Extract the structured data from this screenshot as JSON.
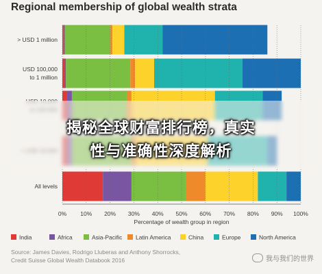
{
  "chart_data": {
    "type": "bar",
    "orientation": "horizontal",
    "stacked": true,
    "title": "Regional membership of global wealth strata",
    "xlabel": "Percentage of wealth group in region",
    "xlim": [
      0,
      100
    ],
    "x_ticks": [
      "0%",
      "10%",
      "20%",
      "30%",
      "40%",
      "50%",
      "60%",
      "70%",
      "80%",
      "90%",
      "100%"
    ],
    "grid": true,
    "legend_position": "bottom",
    "categories": [
      [
        "> USD 1 million"
      ],
      [
        "USD 100,000",
        "to 1 million"
      ],
      [
        "USD 10,000",
        "to 100,000"
      ],
      [
        "< USD 10,000"
      ],
      [
        "All levels"
      ]
    ],
    "series": [
      {
        "name": "India",
        "color": "#e03a36",
        "values": [
          0.5,
          1,
          2,
          2,
          17
        ]
      },
      {
        "name": "Africa",
        "color": "#7a56a2",
        "values": [
          0.5,
          0.5,
          2,
          2,
          12
        ]
      },
      {
        "name": "Asia-Pacific",
        "color": "#7bbf42",
        "values": [
          19,
          27,
          23,
          25,
          23
        ]
      },
      {
        "name": "Latin America",
        "color": "#ee8a2a",
        "values": [
          1,
          2,
          2,
          2,
          8
        ]
      },
      {
        "name": "China",
        "color": "#fdd22a",
        "values": [
          5,
          8,
          35,
          30,
          22
        ]
      },
      {
        "name": "Europe",
        "color": "#20b3ad",
        "values": [
          16,
          37,
          20,
          25,
          12
        ]
      },
      {
        "name": "North America",
        "color": "#1d6fb3",
        "values": [
          44,
          24.5,
          8,
          4,
          6
        ]
      }
    ]
  },
  "source_lines": [
    "Source: James Davies, Rodrigo Lluberas and Anthony Shorrocks,",
    "Credit Suisse Global Wealth Databook 2016"
  ],
  "overlay": {
    "line1": "揭秘全球财富排行榜，真实",
    "line2": "性与准确性深度解析"
  },
  "watermark": "我与我们的世界"
}
